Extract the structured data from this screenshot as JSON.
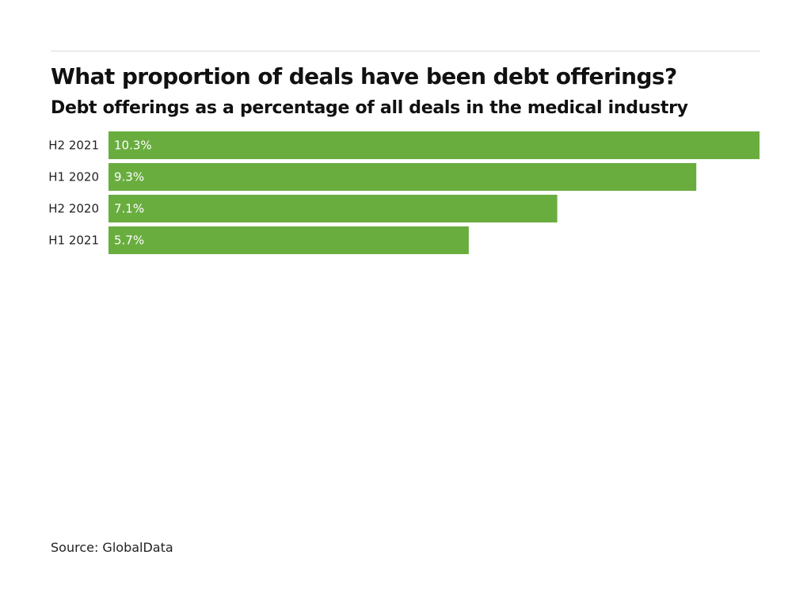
{
  "header": {
    "title": "What proportion of deals have been debt offerings?",
    "subtitle": "Debt offerings as a percentage of all deals in the medical industry"
  },
  "footer": {
    "source": "Source: GlobalData"
  },
  "colors": {
    "bar": "#69ad3f",
    "text": "#111111",
    "rule": "#d9d9d9"
  },
  "chart_data": {
    "type": "bar",
    "orientation": "horizontal",
    "title": "What proportion of deals have been debt offerings?",
    "subtitle": "Debt offerings as a percentage of all deals in the medical industry",
    "categories": [
      "H2 2021",
      "H1 2020",
      "H2 2020",
      "H1 2021"
    ],
    "values": [
      10.3,
      9.3,
      7.1,
      5.7
    ],
    "value_labels": [
      "10.3%",
      "9.3%",
      "7.1%",
      "5.7%"
    ],
    "unit": "%",
    "xlim": [
      0,
      10.3
    ],
    "grid": false,
    "legend": "none"
  }
}
